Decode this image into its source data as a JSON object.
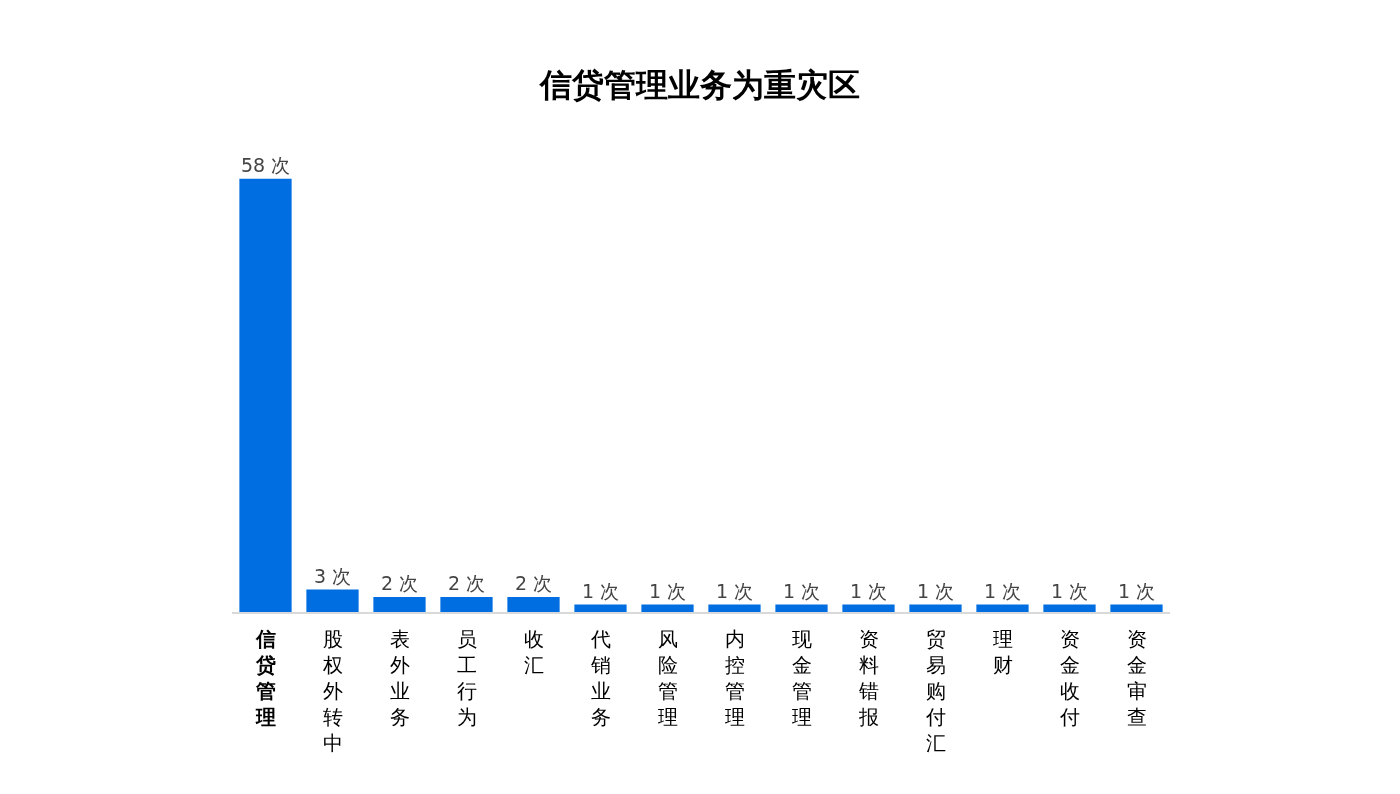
{
  "chart_data": {
    "type": "bar",
    "title": "信贷管理业务为重灾区",
    "categories": [
      "信贷管理",
      "股权外转中",
      "表外业务",
      "员工行为",
      "收汇",
      "代销业务",
      "风险管理",
      "内控管理",
      "现金管理",
      "资料错报",
      "贸易购付汇",
      "理财",
      "资金收付",
      "资金审查"
    ],
    "values": [
      58,
      3,
      2,
      2,
      2,
      1,
      1,
      1,
      1,
      1,
      1,
      1,
      1,
      1
    ],
    "value_labels": [
      "58 次",
      "3 次",
      "2 次",
      "2 次",
      "2 次",
      "1 次",
      "1 次",
      "1 次",
      "1 次",
      "1 次",
      "1 次",
      "1 次",
      "1 次",
      "1 次"
    ],
    "color": "#006ee1",
    "tick_labels": "x"
  }
}
